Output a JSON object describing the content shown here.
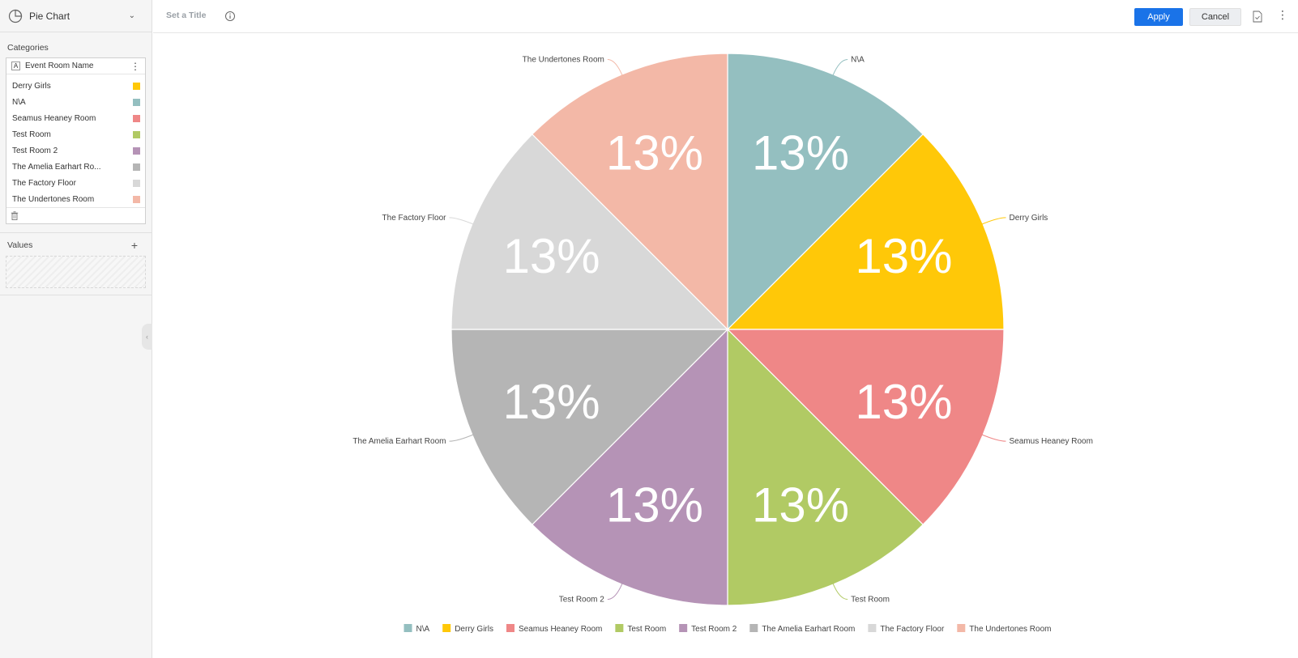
{
  "sidebar": {
    "chart_type": {
      "label": "Pie Chart",
      "icon": "pie-chart-icon"
    },
    "categories_title": "Categories",
    "field": {
      "type_badge": "A",
      "name": "Event Room Name"
    },
    "categories": [
      {
        "name": "Derry Girls",
        "color": "#ffc808"
      },
      {
        "name": "N\\A",
        "color": "#94bfc0"
      },
      {
        "name": "Seamus Heaney Room",
        "color": "#ef8787"
      },
      {
        "name": "Test Room",
        "color": "#b1ca64"
      },
      {
        "name": "Test Room 2",
        "color": "#b593b6"
      },
      {
        "name": "The Amelia Earhart Ro...",
        "color": "#b5b5b5"
      },
      {
        "name": "The Factory Floor",
        "color": "#d8d8d8"
      },
      {
        "name": "The Undertones Room",
        "color": "#f3b8a7"
      }
    ],
    "values_title": "Values"
  },
  "topbar": {
    "title_placeholder": "Set a Title",
    "apply_label": "Apply",
    "cancel_label": "Cancel"
  },
  "chart_data": {
    "type": "pie",
    "categories": [
      "N\\A",
      "Derry Girls",
      "Seamus Heaney Room",
      "Test Room",
      "Test Room 2",
      "The Amelia Earhart Room",
      "The Factory Floor",
      "The Undertones Room"
    ],
    "values": [
      12.5,
      12.5,
      12.5,
      12.5,
      12.5,
      12.5,
      12.5,
      12.5
    ],
    "labels": [
      "13%",
      "13%",
      "13%",
      "13%",
      "13%",
      "13%",
      "13%",
      "13%"
    ],
    "colors": [
      "#94bfc0",
      "#ffc808",
      "#ef8787",
      "#b1ca64",
      "#b593b6",
      "#b5b5b5",
      "#d8d8d8",
      "#f3b8a7"
    ],
    "legend_position": "bottom"
  }
}
